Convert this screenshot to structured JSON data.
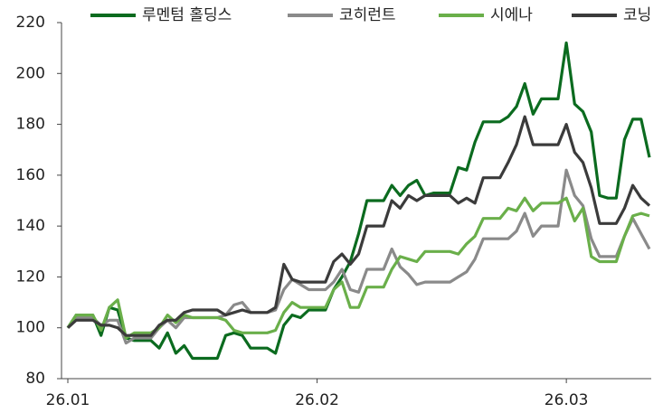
{
  "chart_data": {
    "type": "line",
    "categories": [
      "26.01",
      null,
      null,
      null,
      null,
      null,
      null,
      null,
      null,
      null,
      null,
      null,
      null,
      null,
      null,
      null,
      null,
      null,
      null,
      null,
      null,
      null,
      null,
      null,
      null,
      null,
      null,
      null,
      null,
      null,
      "26.02",
      null,
      null,
      null,
      null,
      null,
      null,
      null,
      null,
      null,
      null,
      null,
      null,
      null,
      null,
      null,
      null,
      null,
      null,
      null,
      null,
      null,
      null,
      null,
      null,
      null,
      null,
      null,
      null,
      null,
      "26.03",
      null,
      null,
      null,
      null,
      null,
      null,
      null,
      null,
      null,
      null
    ],
    "series": [
      {
        "name": "루멘텀 홀딩스",
        "color": "#0b6b1f",
        "values": [
          100,
          105,
          105,
          105,
          97,
          108,
          107,
          96,
          95,
          95,
          95,
          92,
          98,
          90,
          93,
          88,
          88,
          88,
          88,
          97,
          98,
          97,
          92,
          92,
          92,
          90,
          101,
          105,
          104,
          107,
          107,
          107,
          115,
          120,
          126,
          137,
          150,
          150,
          150,
          156,
          152,
          156,
          158,
          152,
          153,
          153,
          153,
          163,
          162,
          173,
          181,
          181,
          181,
          183,
          187,
          196,
          184,
          190,
          190,
          190,
          212,
          188,
          185,
          177,
          152,
          151,
          151,
          174,
          182,
          182,
          167
        ]
      },
      {
        "name": "코히런트",
        "color": "#8a8a8a",
        "values": [
          100,
          104,
          104,
          104,
          101,
          103,
          103,
          94,
          96,
          96,
          96,
          100,
          103,
          100,
          104,
          104,
          104,
          104,
          104,
          105,
          109,
          110,
          106,
          106,
          106,
          107,
          115,
          119,
          117,
          115,
          115,
          115,
          118,
          123,
          115,
          114,
          123,
          123,
          123,
          131,
          124,
          121,
          117,
          118,
          118,
          118,
          118,
          120,
          122,
          127,
          135,
          135,
          135,
          135,
          138,
          145,
          136,
          140,
          140,
          140,
          162,
          152,
          148,
          135,
          128,
          128,
          128,
          136,
          143,
          137,
          131
        ]
      },
      {
        "name": "시에나",
        "color": "#6aaf4a",
        "values": [
          100,
          105,
          105,
          105,
          99,
          108,
          111,
          96,
          98,
          98,
          98,
          100,
          105,
          102,
          105,
          104,
          104,
          104,
          104,
          103,
          99,
          98,
          98,
          98,
          98,
          99,
          106,
          110,
          108,
          108,
          108,
          108,
          115,
          118,
          108,
          108,
          116,
          116,
          116,
          123,
          128,
          127,
          126,
          130,
          130,
          130,
          130,
          129,
          133,
          136,
          143,
          143,
          143,
          147,
          146,
          151,
          146,
          149,
          149,
          149,
          151,
          142,
          147,
          128,
          126,
          126,
          126,
          136,
          144,
          145,
          144
        ]
      },
      {
        "name": "코닝",
        "color": "#3b3b3b",
        "values": [
          100,
          103,
          103,
          103,
          101,
          101,
          100,
          97,
          97,
          97,
          97,
          101,
          103,
          103,
          106,
          107,
          107,
          107,
          107,
          105,
          106,
          107,
          106,
          106,
          106,
          108,
          125,
          119,
          118,
          118,
          118,
          118,
          126,
          129,
          125,
          129,
          140,
          140,
          140,
          150,
          147,
          152,
          150,
          152,
          152,
          152,
          152,
          149,
          151,
          149,
          159,
          159,
          159,
          165,
          172,
          183,
          172,
          172,
          172,
          172,
          180,
          169,
          165,
          155,
          141,
          141,
          141,
          147,
          156,
          151,
          148
        ]
      }
    ],
    "ylim": [
      80,
      220
    ],
    "yticks": [
      80,
      100,
      120,
      140,
      160,
      180,
      200,
      220
    ],
    "legend": "top"
  }
}
